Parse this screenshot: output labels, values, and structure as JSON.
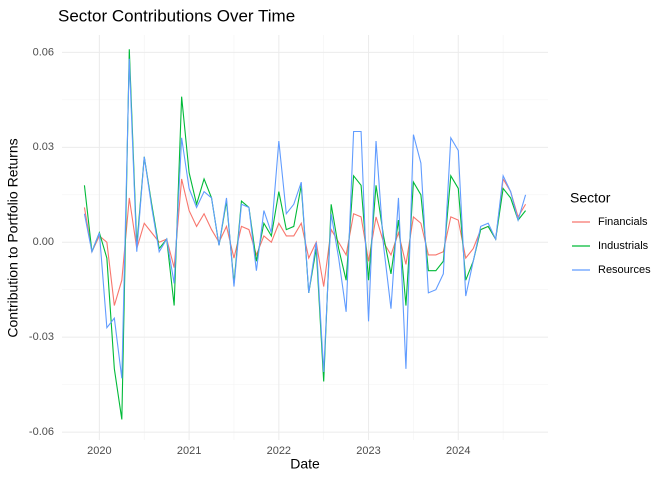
{
  "chart_data": {
    "type": "line",
    "title": "Sector Contributions Over Time",
    "x_label": "Date",
    "y_label": "Contribution to Portfolio Returns",
    "legend_title": "Sector",
    "legend_position": "right",
    "grid": true,
    "x": [
      "2019-11",
      "2019-12",
      "2020-01",
      "2020-02",
      "2020-03",
      "2020-04",
      "2020-05",
      "2020-06",
      "2020-07",
      "2020-08",
      "2020-09",
      "2020-10",
      "2020-11",
      "2020-12",
      "2021-01",
      "2021-02",
      "2021-03",
      "2021-04",
      "2021-05",
      "2021-06",
      "2021-07",
      "2021-08",
      "2021-09",
      "2021-10",
      "2021-11",
      "2021-12",
      "2022-01",
      "2022-02",
      "2022-03",
      "2022-04",
      "2022-05",
      "2022-06",
      "2022-07",
      "2022-08",
      "2022-09",
      "2022-10",
      "2022-11",
      "2022-12",
      "2023-01",
      "2023-02",
      "2023-03",
      "2023-04",
      "2023-05",
      "2023-06",
      "2023-07",
      "2023-08",
      "2023-09",
      "2023-10",
      "2023-11",
      "2023-12",
      "2024-01",
      "2024-02",
      "2024-03",
      "2024-04",
      "2024-05",
      "2024-06",
      "2024-07",
      "2024-08",
      "2024-09",
      "2024-10"
    ],
    "xlim": [
      "2019-08",
      "2025-01"
    ],
    "xticks": [
      {
        "value": "2020-01",
        "label": "2020"
      },
      {
        "value": "2021-01",
        "label": "2021"
      },
      {
        "value": "2022-01",
        "label": "2022"
      },
      {
        "value": "2023-01",
        "label": "2023"
      },
      {
        "value": "2024-01",
        "label": "2024"
      }
    ],
    "ylim": [
      -0.0625,
      0.0655
    ],
    "yticks": [
      -0.06,
      -0.03,
      {
        "value": 0,
        "label": "0.00"
      },
      0.03,
      0.06
    ],
    "series": [
      {
        "name": "Financials",
        "color": "#F8766D",
        "values": [
          0.011,
          -0.003,
          0.002,
          0.0,
          -0.02,
          -0.012,
          0.014,
          -0.002,
          0.006,
          0.003,
          0.0,
          0.001,
          -0.008,
          0.02,
          0.01,
          0.005,
          0.009,
          0.004,
          0.0,
          0.005,
          -0.005,
          0.005,
          0.004,
          -0.004,
          0.002,
          0.0,
          0.006,
          0.002,
          0.002,
          0.006,
          -0.005,
          0.0,
          -0.014,
          0.004,
          0.0,
          -0.004,
          0.009,
          0.008,
          -0.006,
          0.008,
          0.0,
          -0.004,
          0.003,
          -0.007,
          0.008,
          0.006,
          -0.004,
          -0.004,
          -0.003,
          0.008,
          0.007,
          -0.005,
          -0.002,
          0.004,
          0.005,
          0.001,
          0.02,
          0.016,
          0.008,
          0.012
        ]
      },
      {
        "name": "Industrials",
        "color": "#00BA38",
        "values": [
          0.018,
          -0.003,
          0.003,
          -0.005,
          -0.04,
          -0.056,
          0.061,
          -0.001,
          0.027,
          0.012,
          -0.002,
          0.001,
          -0.02,
          0.046,
          0.022,
          0.012,
          0.02,
          0.014,
          -0.001,
          0.013,
          -0.013,
          0.013,
          0.011,
          -0.006,
          0.006,
          0.002,
          0.016,
          0.004,
          0.005,
          0.018,
          -0.016,
          -0.002,
          -0.044,
          0.012,
          -0.002,
          -0.012,
          0.021,
          0.018,
          -0.012,
          0.018,
          0.002,
          -0.01,
          0.007,
          -0.02,
          0.019,
          0.015,
          -0.009,
          -0.009,
          -0.006,
          0.021,
          0.017,
          -0.012,
          -0.006,
          0.004,
          0.005,
          0.001,
          0.017,
          0.014,
          0.007,
          0.01
        ]
      },
      {
        "name": "Resources",
        "color": "#619CFF",
        "values": [
          0.009,
          -0.003,
          0.003,
          -0.027,
          -0.024,
          -0.043,
          0.058,
          -0.003,
          0.027,
          0.011,
          -0.003,
          0.001,
          -0.013,
          0.033,
          0.017,
          0.011,
          0.016,
          0.014,
          -0.001,
          0.014,
          -0.014,
          0.012,
          0.011,
          -0.009,
          0.01,
          0.003,
          0.032,
          0.009,
          0.012,
          0.019,
          -0.016,
          0.0,
          -0.041,
          0.009,
          -0.005,
          -0.022,
          0.035,
          0.035,
          -0.025,
          0.032,
          -0.001,
          -0.021,
          0.014,
          -0.04,
          0.034,
          0.025,
          -0.016,
          -0.015,
          -0.01,
          0.033,
          0.029,
          -0.017,
          -0.006,
          0.005,
          0.006,
          0.001,
          0.021,
          0.016,
          0.007,
          0.015
        ]
      }
    ]
  }
}
